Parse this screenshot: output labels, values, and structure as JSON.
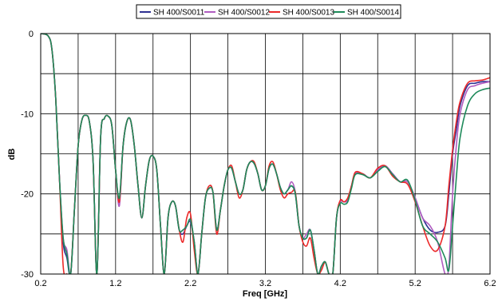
{
  "chart_data": {
    "type": "line",
    "title": "",
    "xlabel": "Freq [GHz]",
    "ylabel": "dB",
    "xlim": [
      0.2,
      6.2
    ],
    "ylim": [
      -30,
      0
    ],
    "xticks": [
      0.2,
      1.2,
      2.2,
      3.2,
      4.2,
      5.2,
      6.2
    ],
    "xtick_labels": [
      "0.2",
      "1.2",
      "2.2",
      "3.2",
      "4.2",
      "5.2",
      "6.2"
    ],
    "yticks": [
      0,
      -10,
      -20,
      -30
    ],
    "ytick_labels": [
      "0",
      "-10",
      "-20",
      "-30"
    ],
    "grid": true,
    "legend_position": "top",
    "series": [
      {
        "name": "SH 400/S0011",
        "color": "#2e3192",
        "x": [
          0.2,
          0.3,
          0.35,
          0.4,
          0.45,
          0.5,
          0.55,
          0.6,
          0.65,
          0.7,
          0.75,
          0.8,
          0.85,
          0.9,
          0.95,
          1.0,
          1.05,
          1.1,
          1.15,
          1.2,
          1.25,
          1.3,
          1.35,
          1.4,
          1.45,
          1.5,
          1.55,
          1.6,
          1.65,
          1.7,
          1.75,
          1.8,
          1.85,
          1.9,
          1.95,
          2.0,
          2.05,
          2.1,
          2.15,
          2.2,
          2.25,
          2.3,
          2.35,
          2.4,
          2.45,
          2.5,
          2.55,
          2.6,
          2.65,
          2.7,
          2.75,
          2.8,
          2.85,
          2.9,
          2.95,
          3.0,
          3.05,
          3.1,
          3.15,
          3.2,
          3.25,
          3.3,
          3.35,
          3.4,
          3.45,
          3.5,
          3.55,
          3.6,
          3.65,
          3.7,
          3.75,
          3.8,
          3.85,
          3.9,
          3.95,
          4.0,
          4.05,
          4.1,
          4.15,
          4.2,
          4.25,
          4.3,
          4.35,
          4.4,
          4.5,
          4.6,
          4.7,
          4.8,
          4.9,
          5.0,
          5.1,
          5.2,
          5.3,
          5.4,
          5.5,
          5.6,
          5.65,
          5.7,
          5.75,
          5.8,
          5.9,
          6.0,
          6.1,
          6.2
        ],
        "values": [
          0,
          -0.3,
          -2,
          -8,
          -18,
          -26,
          -28,
          -30,
          -22,
          -14,
          -10.8,
          -10.2,
          -11,
          -16,
          -30,
          -13,
          -10.6,
          -10.3,
          -11.5,
          -17,
          -21,
          -14,
          -11,
          -10.8,
          -14,
          -19,
          -23,
          -19,
          -15.8,
          -15.3,
          -17,
          -24,
          -30,
          -23,
          -21,
          -21.5,
          -24.5,
          -25,
          -24,
          -23.5,
          -26,
          -30,
          -25,
          -20.5,
          -19.3,
          -19.8,
          -24.5,
          -22,
          -19,
          -17,
          -16.8,
          -18.5,
          -20,
          -19.5,
          -17,
          -16,
          -16.2,
          -17.5,
          -19.5,
          -19,
          -16.8,
          -16.3,
          -17.5,
          -19.2,
          -20,
          -19.5,
          -19,
          -20,
          -24,
          -25.5,
          -25.5,
          -24.5,
          -27,
          -30,
          -29,
          -28.5,
          -30,
          -30,
          -23,
          -21,
          -21,
          -20.8,
          -19,
          -17.5,
          -17.5,
          -18,
          -17,
          -16.5,
          -17.5,
          -18.5,
          -18.5,
          -20.5,
          -23,
          -24.5,
          -24.8,
          -24,
          -20,
          -15,
          -12,
          -9,
          -6.5,
          -6.2,
          -6,
          -6
        ]
      },
      {
        "name": "SH 400/S0012",
        "color": "#b05cc0",
        "x": [
          0.2,
          0.3,
          0.35,
          0.4,
          0.45,
          0.5,
          0.55,
          0.6,
          0.65,
          0.7,
          0.75,
          0.8,
          0.85,
          0.9,
          0.95,
          1.0,
          1.05,
          1.1,
          1.15,
          1.2,
          1.25,
          1.3,
          1.35,
          1.4,
          1.45,
          1.5,
          1.55,
          1.6,
          1.65,
          1.7,
          1.75,
          1.8,
          1.85,
          1.9,
          1.95,
          2.0,
          2.05,
          2.1,
          2.15,
          2.2,
          2.25,
          2.3,
          2.35,
          2.4,
          2.45,
          2.5,
          2.55,
          2.6,
          2.65,
          2.7,
          2.75,
          2.8,
          2.85,
          2.9,
          2.95,
          3.0,
          3.05,
          3.1,
          3.15,
          3.2,
          3.25,
          3.3,
          3.35,
          3.4,
          3.45,
          3.5,
          3.55,
          3.6,
          3.65,
          3.7,
          3.75,
          3.8,
          3.85,
          3.9,
          3.95,
          4.0,
          4.05,
          4.1,
          4.15,
          4.2,
          4.25,
          4.3,
          4.35,
          4.4,
          4.5,
          4.6,
          4.7,
          4.8,
          4.9,
          5.0,
          5.1,
          5.2,
          5.3,
          5.4,
          5.5,
          5.6,
          5.65,
          5.7,
          5.75,
          5.8,
          5.9,
          6.0,
          6.1,
          6.2
        ],
        "values": [
          0,
          -0.3,
          -2,
          -8,
          -18,
          -25.5,
          -27,
          -30,
          -22,
          -14,
          -10.8,
          -10.2,
          -11,
          -16,
          -30,
          -13,
          -10.6,
          -10.3,
          -11.5,
          -17,
          -21.5,
          -14,
          -11,
          -10.8,
          -14,
          -19,
          -23,
          -19,
          -15.8,
          -15.3,
          -17,
          -24,
          -30,
          -23,
          -21,
          -21.5,
          -24.5,
          -24.5,
          -24,
          -23.3,
          -26,
          -30,
          -25,
          -20.5,
          -19.3,
          -19.8,
          -24.5,
          -22,
          -19,
          -17,
          -16.8,
          -18.5,
          -20,
          -19.5,
          -17,
          -16,
          -16.2,
          -17.5,
          -19.5,
          -19,
          -16.8,
          -16.3,
          -17.5,
          -19.2,
          -20,
          -19.5,
          -18.5,
          -19.8,
          -24,
          -25.5,
          -25,
          -24.5,
          -27,
          -30,
          -29,
          -28.5,
          -30,
          -30,
          -23,
          -21,
          -21,
          -20.8,
          -19,
          -17.5,
          -17.5,
          -18,
          -17,
          -16.5,
          -17.5,
          -18.5,
          -18.5,
          -20.5,
          -23,
          -24,
          -26,
          -30,
          -29,
          -20,
          -14,
          -10,
          -7,
          -6.5,
          -6.2,
          -6
        ]
      },
      {
        "name": "SH 400/S0013",
        "color": "#ec2a2a",
        "x": [
          0.2,
          0.3,
          0.35,
          0.4,
          0.45,
          0.5,
          0.55,
          0.6,
          0.65,
          0.7,
          0.75,
          0.8,
          0.85,
          0.9,
          0.95,
          1.0,
          1.05,
          1.1,
          1.15,
          1.2,
          1.25,
          1.3,
          1.35,
          1.4,
          1.45,
          1.5,
          1.55,
          1.6,
          1.65,
          1.7,
          1.75,
          1.8,
          1.85,
          1.9,
          1.95,
          2.0,
          2.05,
          2.1,
          2.15,
          2.2,
          2.25,
          2.3,
          2.35,
          2.4,
          2.45,
          2.5,
          2.55,
          2.6,
          2.65,
          2.7,
          2.75,
          2.8,
          2.85,
          2.9,
          2.95,
          3.0,
          3.05,
          3.1,
          3.15,
          3.2,
          3.25,
          3.3,
          3.35,
          3.4,
          3.45,
          3.5,
          3.55,
          3.6,
          3.65,
          3.7,
          3.75,
          3.8,
          3.85,
          3.9,
          3.95,
          4.0,
          4.05,
          4.1,
          4.15,
          4.2,
          4.25,
          4.3,
          4.35,
          4.4,
          4.5,
          4.6,
          4.7,
          4.8,
          4.9,
          5.0,
          5.1,
          5.2,
          5.3,
          5.4,
          5.5,
          5.6,
          5.65,
          5.7,
          5.75,
          5.8,
          5.9,
          6.0,
          6.1,
          6.2
        ],
        "values": [
          0,
          -0.3,
          -2,
          -8,
          -18,
          -29,
          -30,
          -30,
          -22,
          -14,
          -10.8,
          -10.2,
          -11,
          -16,
          -30,
          -13,
          -10.6,
          -10.3,
          -11.5,
          -17,
          -21,
          -14,
          -11,
          -10.8,
          -14,
          -19,
          -23,
          -19,
          -15.8,
          -15.3,
          -17,
          -24,
          -30,
          -23,
          -21,
          -21.5,
          -24.5,
          -26,
          -23,
          -22.5,
          -27,
          -30,
          -25,
          -20.5,
          -19,
          -19.8,
          -25,
          -22,
          -19,
          -17,
          -16.5,
          -18.5,
          -20.5,
          -19.5,
          -17,
          -16,
          -16,
          -17.5,
          -19.5,
          -19,
          -16.5,
          -16,
          -17.5,
          -19.5,
          -20.5,
          -20,
          -19.8,
          -19.8,
          -24,
          -26,
          -26.5,
          -25.5,
          -28,
          -30,
          -29.5,
          -28.5,
          -30,
          -30,
          -23,
          -20.8,
          -21,
          -20.5,
          -19,
          -17.3,
          -17.5,
          -18,
          -16.8,
          -16.5,
          -17.8,
          -18.5,
          -18.8,
          -21,
          -24,
          -26.5,
          -27,
          -24,
          -19,
          -14.5,
          -11,
          -8.5,
          -6.2,
          -5.9,
          -5.8,
          -5.5
        ]
      },
      {
        "name": "SH 400/S0014",
        "color": "#1e8a5a",
        "x": [
          0.2,
          0.3,
          0.35,
          0.4,
          0.45,
          0.5,
          0.55,
          0.6,
          0.65,
          0.7,
          0.75,
          0.8,
          0.85,
          0.9,
          0.95,
          1.0,
          1.05,
          1.1,
          1.15,
          1.2,
          1.25,
          1.3,
          1.35,
          1.4,
          1.45,
          1.5,
          1.55,
          1.6,
          1.65,
          1.7,
          1.75,
          1.8,
          1.85,
          1.9,
          1.95,
          2.0,
          2.05,
          2.1,
          2.15,
          2.2,
          2.25,
          2.3,
          2.35,
          2.4,
          2.45,
          2.5,
          2.55,
          2.6,
          2.65,
          2.7,
          2.75,
          2.8,
          2.85,
          2.9,
          2.95,
          3.0,
          3.05,
          3.1,
          3.15,
          3.2,
          3.25,
          3.3,
          3.35,
          3.4,
          3.45,
          3.5,
          3.55,
          3.6,
          3.65,
          3.7,
          3.75,
          3.8,
          3.85,
          3.9,
          3.95,
          4.0,
          4.05,
          4.1,
          4.15,
          4.2,
          4.25,
          4.3,
          4.35,
          4.4,
          4.5,
          4.6,
          4.7,
          4.8,
          4.9,
          5.0,
          5.1,
          5.2,
          5.3,
          5.4,
          5.5,
          5.6,
          5.65,
          5.7,
          5.75,
          5.8,
          5.9,
          6.0,
          6.1,
          6.2
        ],
        "values": [
          0,
          -0.3,
          -2,
          -8,
          -18,
          -25.5,
          -27.5,
          -30,
          -22,
          -14,
          -10.8,
          -10.2,
          -11,
          -16,
          -30,
          -13,
          -10.6,
          -10.3,
          -11.5,
          -17,
          -20.5,
          -14,
          -11,
          -10.8,
          -14,
          -19,
          -23,
          -19,
          -15.8,
          -15.3,
          -17,
          -24,
          -30,
          -23,
          -21,
          -21.5,
          -24.5,
          -24.5,
          -24,
          -23.2,
          -26,
          -30,
          -25,
          -20.5,
          -19.3,
          -19.8,
          -24.5,
          -22,
          -19,
          -17,
          -16.8,
          -18.5,
          -20,
          -19.5,
          -17,
          -16,
          -16.2,
          -17.5,
          -19.5,
          -19,
          -16.8,
          -16.3,
          -17.5,
          -19.2,
          -20,
          -19.5,
          -19,
          -20,
          -24,
          -25.5,
          -25.5,
          -24.5,
          -27,
          -30,
          -29,
          -28.5,
          -30,
          -30,
          -23,
          -21.2,
          -21.3,
          -21,
          -19.3,
          -17.6,
          -17.6,
          -18,
          -17.2,
          -16.6,
          -17.6,
          -18.5,
          -18.3,
          -20.8,
          -24,
          -25,
          -26,
          -28,
          -29.5,
          -24,
          -18,
          -13,
          -9,
          -7.5,
          -7,
          -6.8
        ]
      }
    ]
  }
}
